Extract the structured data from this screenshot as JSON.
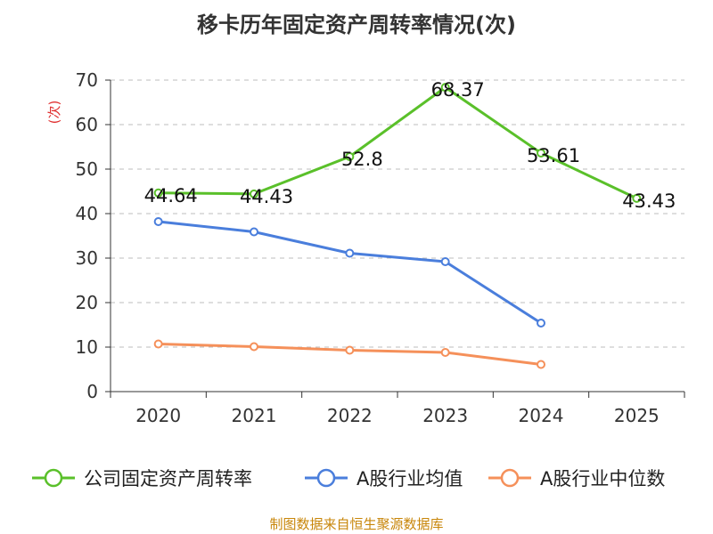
{
  "title": "移卡历年固定资产周转率情况(次)",
  "source": "制图数据来自恒生聚源数据库",
  "chart_data": {
    "type": "line",
    "title": "移卡历年固定资产周转率情况(次)",
    "ylabel": "(次)",
    "xlabel": "",
    "ylim": [
      0,
      70
    ],
    "yticks": [
      0,
      10,
      20,
      30,
      40,
      50,
      60,
      70
    ],
    "grid": true,
    "legend_position": "bottom",
    "categories": [
      "2020",
      "2021",
      "2022",
      "2023",
      "2024",
      "2025"
    ],
    "series": [
      {
        "name": "公司固定资产周转率",
        "color": "#5ac02a",
        "values": [
          44.64,
          44.43,
          52.8,
          68.37,
          53.61,
          43.43
        ],
        "labels": [
          "44.64",
          "44.43",
          "52.8",
          "68.37",
          "53.61",
          "43.43"
        ],
        "show_labels": true
      },
      {
        "name": "A股行业均值",
        "color": "#4a7edc",
        "values": [
          38.2,
          35.9,
          31.1,
          29.2,
          15.4,
          null
        ],
        "show_labels": false
      },
      {
        "name": "A股行业中位数",
        "color": "#f5905a",
        "values": [
          10.7,
          10.1,
          9.3,
          8.8,
          6.1,
          null
        ],
        "show_labels": false
      }
    ]
  }
}
